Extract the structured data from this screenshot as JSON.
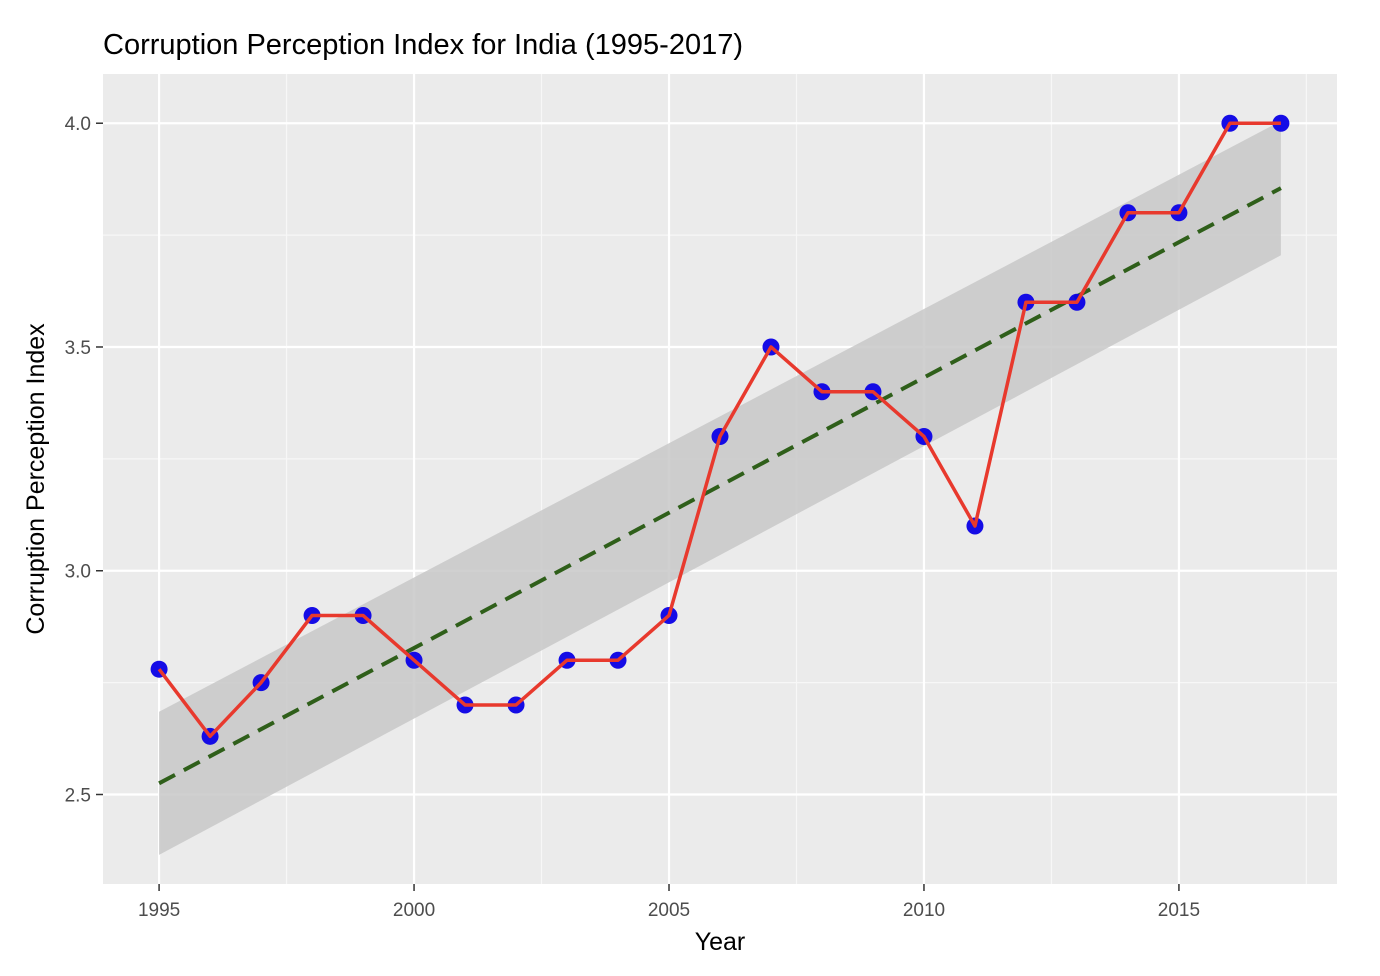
{
  "chart_data": {
    "type": "line",
    "title": "Corruption Perception Index for India (1995-2017)",
    "xlabel": "Year",
    "ylabel": "Corruption Perception Index",
    "xlim": [
      1993.9,
      2018.1
    ],
    "ylim": [
      2.3,
      4.11
    ],
    "x_ticks": [
      1995,
      2000,
      2005,
      2010,
      2015
    ],
    "x_tick_labels": [
      "1995",
      "2000",
      "2005",
      "2010",
      "2015"
    ],
    "y_ticks": [
      2.5,
      3.0,
      3.5,
      4.0
    ],
    "y_tick_labels": [
      "2.5",
      "3.0",
      "3.5",
      "4.0"
    ],
    "x_minor_ticks": [
      1997.5,
      2002.5,
      2007.5,
      2012.5,
      2017.5
    ],
    "y_minor_ticks": [
      2.75,
      3.25,
      3.75
    ],
    "grid": true,
    "series": [
      {
        "x": [
          1995,
          1996,
          1997,
          1998,
          1999,
          2000,
          2001,
          2002,
          2003,
          2004,
          2005,
          2006,
          2007,
          2008,
          2009,
          2010,
          2011,
          2012,
          2013,
          2014,
          2015,
          2016,
          2017
        ],
        "values": [
          2.78,
          2.63,
          2.75,
          2.9,
          2.9,
          2.8,
          2.7,
          2.7,
          2.8,
          2.8,
          2.9,
          3.3,
          3.5,
          3.4,
          3.4,
          3.3,
          3.1,
          3.6,
          3.6,
          3.8,
          3.8,
          4.0,
          4.0
        ],
        "line_color": "#e8392d",
        "point_color": "#0a00e6"
      }
    ],
    "trend": {
      "type": "linear",
      "style": "dashed",
      "color": "#2f5f1a",
      "x_range": [
        1995,
        2017
      ],
      "y_range": [
        2.525,
        3.855
      ],
      "ci_lower": [
        2.365,
        3.705
      ],
      "ci_upper": [
        2.685,
        4.005
      ],
      "ci_color": "#c8c8c8"
    },
    "panel_background": "#ebebeb"
  }
}
